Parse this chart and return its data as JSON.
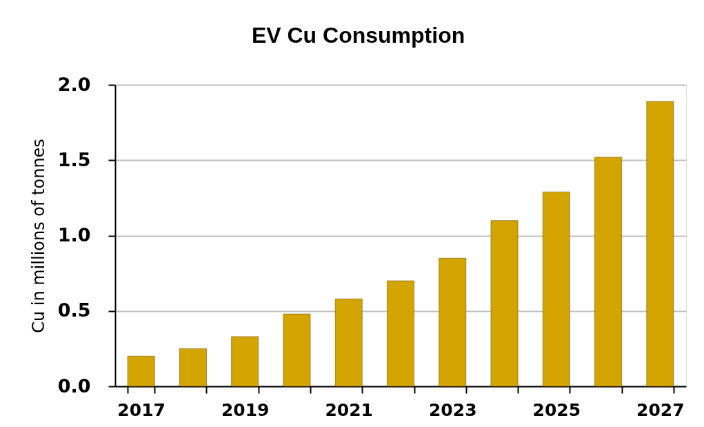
{
  "chart_data": {
    "type": "bar",
    "title": "EV Cu Consumption",
    "ylabel": "Cu in millions of tonnes",
    "categories": [
      "2017",
      null,
      "2019",
      null,
      "2021",
      null,
      "2023",
      null,
      "2025",
      null,
      "2027"
    ],
    "values": [
      0.2,
      0.25,
      0.33,
      0.48,
      0.58,
      0.7,
      0.85,
      1.1,
      1.29,
      1.52,
      1.89
    ],
    "color": "#d4a400",
    "ylim": [
      0,
      2
    ],
    "yticks": [
      {
        "value": 0,
        "label": "0.0"
      },
      {
        "value": 0.5,
        "label": "0.5"
      },
      {
        "value": 1,
        "label": "1.0"
      },
      {
        "value": 1.5,
        "label": "1.5"
      },
      {
        "value": 2,
        "label": "2.0"
      }
    ],
    "grid": "y"
  }
}
